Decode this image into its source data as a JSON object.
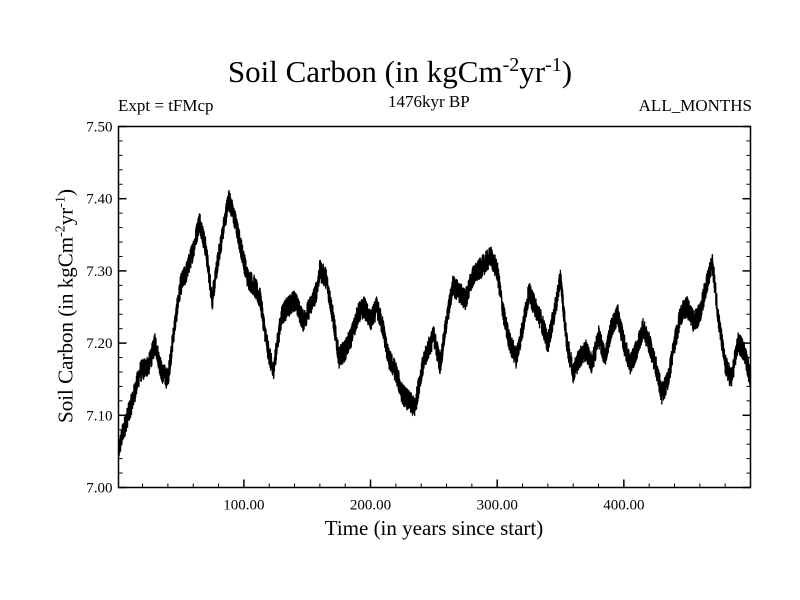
{
  "header": {
    "title_main": "Soil Carbon (in kgCm",
    "title_exp1": "-2",
    "title_mid": "yr",
    "title_exp2": "-1",
    "title_end": ")",
    "left_label": "Expt = tFMcp",
    "center_label": "1476kyr BP",
    "right_label": "ALL_MONTHS"
  },
  "colors": {
    "line": "#000000",
    "frame": "#000000",
    "background": "#ffffff"
  },
  "chart_data": {
    "type": "line",
    "title": "Soil Carbon (in kgCm-2yr-1)",
    "xlabel": "Time (in years since start)",
    "ylabel": "Soil Carbon (in kgCm-2yr-1)",
    "xlabel_text": "Time (in years since start)",
    "ylabel_main": "Soil Carbon (in kgCm",
    "ylabel_exp1": "-2",
    "ylabel_mid": "yr",
    "ylabel_exp2": "-1",
    "ylabel_end": ")",
    "xlim": [
      1,
      500
    ],
    "ylim": [
      7.0,
      7.5
    ],
    "x_ticks": [
      100,
      200,
      300,
      400
    ],
    "x_tick_labels": [
      "100.00",
      "200.00",
      "300.00",
      "400.00"
    ],
    "y_ticks": [
      7.0,
      7.1,
      7.2,
      7.3,
      7.4,
      7.5
    ],
    "y_tick_labels": [
      "7.00",
      "7.10",
      "7.20",
      "7.30",
      "7.40",
      "7.50"
    ],
    "noise_amplitude": 0.015,
    "series": [
      {
        "name": "Soil Carbon",
        "x": [
          1,
          5,
          12,
          18,
          25,
          30,
          35,
          40,
          45,
          50,
          55,
          60,
          65,
          70,
          75,
          80,
          85,
          88,
          93,
          98,
          103,
          108,
          113,
          118,
          123,
          130,
          135,
          140,
          147,
          152,
          157,
          160,
          165,
          170,
          175,
          180,
          185,
          190,
          195,
          200,
          205,
          210,
          214,
          220,
          225,
          230,
          235,
          240,
          245,
          250,
          255,
          260,
          265,
          270,
          275,
          280,
          285,
          290,
          295,
          300,
          305,
          310,
          315,
          320,
          325,
          330,
          335,
          340,
          345,
          350,
          355,
          360,
          365,
          370,
          375,
          380,
          385,
          390,
          395,
          400,
          405,
          410,
          415,
          420,
          425,
          430,
          435,
          440,
          445,
          450,
          455,
          460,
          465,
          470,
          475,
          480,
          485,
          490,
          495,
          500
        ],
        "y": [
          7.05,
          7.08,
          7.12,
          7.16,
          7.17,
          7.2,
          7.16,
          7.15,
          7.22,
          7.28,
          7.3,
          7.33,
          7.37,
          7.33,
          7.26,
          7.32,
          7.37,
          7.4,
          7.37,
          7.33,
          7.29,
          7.28,
          7.26,
          7.2,
          7.16,
          7.24,
          7.25,
          7.26,
          7.23,
          7.25,
          7.27,
          7.3,
          7.29,
          7.24,
          7.18,
          7.19,
          7.21,
          7.24,
          7.25,
          7.23,
          7.25,
          7.22,
          7.18,
          7.16,
          7.13,
          7.12,
          7.11,
          7.16,
          7.19,
          7.21,
          7.17,
          7.23,
          7.28,
          7.27,
          7.26,
          7.29,
          7.3,
          7.31,
          7.32,
          7.3,
          7.24,
          7.2,
          7.18,
          7.22,
          7.27,
          7.25,
          7.23,
          7.2,
          7.24,
          7.29,
          7.2,
          7.16,
          7.18,
          7.19,
          7.17,
          7.21,
          7.18,
          7.22,
          7.24,
          7.2,
          7.17,
          7.19,
          7.22,
          7.2,
          7.17,
          7.13,
          7.15,
          7.2,
          7.24,
          7.25,
          7.23,
          7.24,
          7.28,
          7.31,
          7.23,
          7.17,
          7.15,
          7.2,
          7.19,
          7.15
        ]
      }
    ]
  }
}
